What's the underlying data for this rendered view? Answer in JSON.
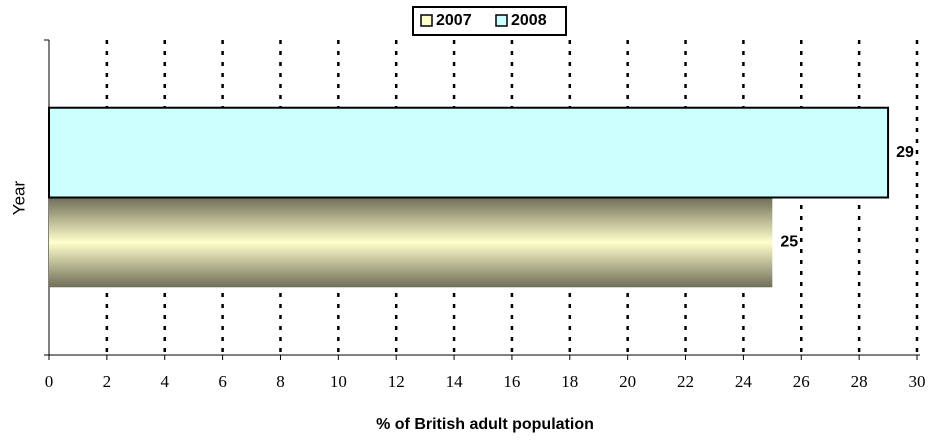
{
  "chart_data": {
    "type": "bar",
    "orientation": "horizontal",
    "xlabel": "% of British adult population",
    "ylabel": "Year",
    "categories": [
      null
    ],
    "series": [
      {
        "name": "2007",
        "color": "#ffffcc",
        "values": [
          25
        ]
      },
      {
        "name": "2008",
        "color": "#ccffff",
        "values": [
          29
        ]
      }
    ],
    "xlim": [
      0,
      30
    ],
    "xticks": [
      0,
      2,
      4,
      6,
      8,
      10,
      12,
      14,
      16,
      18,
      20,
      22,
      24,
      26,
      28,
      30
    ],
    "grid": true,
    "legend": "top"
  }
}
